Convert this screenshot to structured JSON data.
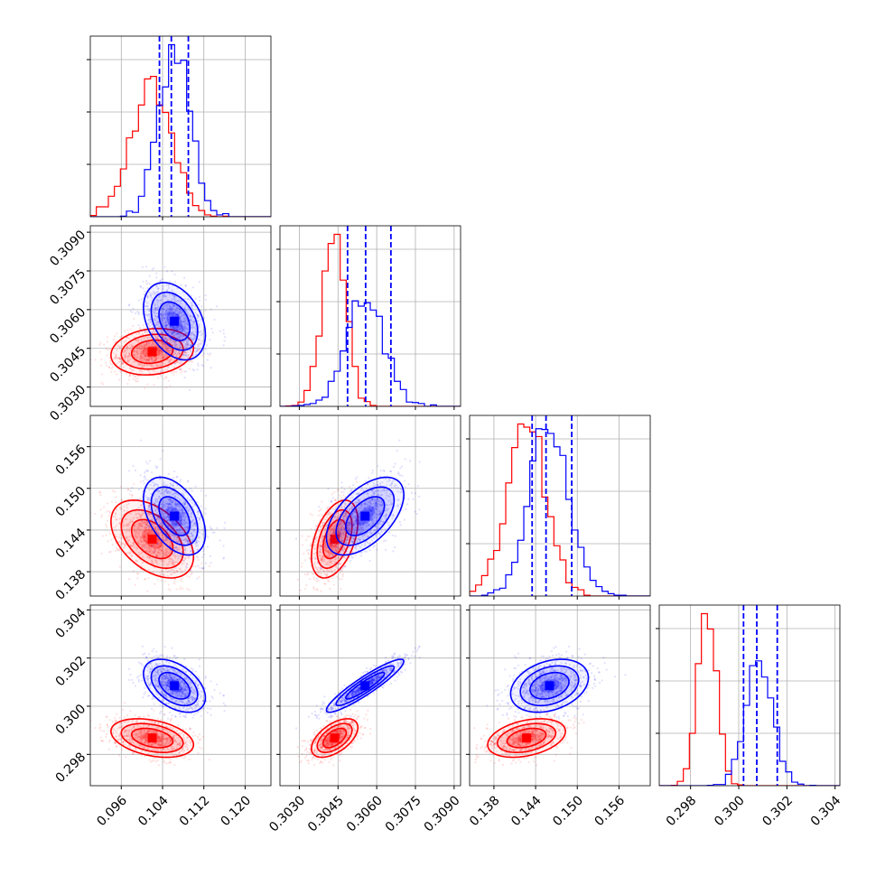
{
  "chart_data": {
    "type": "corner",
    "grid": true,
    "quantile_lines": "dashed",
    "colors": {
      "a": "#ff0000",
      "b": "#0000ff",
      "grid": "#b0b0b0"
    },
    "params": [
      {
        "range": [
          0.09,
          0.125
        ],
        "ticks": [
          "0.096",
          "0.104",
          "0.112",
          "0.120"
        ],
        "tick_values": [
          0.096,
          0.104,
          0.112,
          0.12
        ]
      },
      {
        "range": [
          0.30225,
          0.30925
        ],
        "ticks": [
          "0.3030",
          "0.3045",
          "0.3060",
          "0.3075",
          "0.3090"
        ],
        "tick_values": [
          0.303,
          0.3045,
          0.306,
          0.3075,
          0.309
        ]
      },
      {
        "range": [
          0.1345,
          0.1605
        ],
        "ticks": [
          "0.138",
          "0.144",
          "0.150",
          "0.156"
        ],
        "tick_values": [
          0.138,
          0.144,
          0.15,
          0.156
        ]
      },
      {
        "range": [
          0.2967,
          0.3042
        ],
        "ticks": [
          "0.298",
          "0.300",
          "0.302",
          "0.304"
        ],
        "tick_values": [
          0.298,
          0.3,
          0.302,
          0.304
        ]
      }
    ],
    "series": [
      {
        "id": "a",
        "color": "#ff0000",
        "mean": [
          0.102,
          0.30437,
          0.1427,
          0.29868
        ],
        "sigma": [
          0.004,
          0.00045,
          0.0028,
          0.0004
        ],
        "corr": [
          [
            1,
            0.15,
            -0.45,
            -0.35
          ],
          [
            0.15,
            1,
            0.45,
            0.55
          ],
          [
            -0.45,
            0.45,
            1,
            0.35
          ],
          [
            -0.35,
            0.55,
            0.35,
            1
          ]
        ],
        "quantiles": [
          [],
          [],
          [],
          []
        ]
      },
      {
        "id": "b",
        "color": "#0000ff",
        "mean": [
          0.1063,
          0.30555,
          0.146,
          0.30085
        ],
        "sigma": [
          0.003,
          0.00075,
          0.0028,
          0.00055
        ],
        "corr": [
          [
            1,
            -0.35,
            -0.45,
            -0.45
          ],
          [
            -0.35,
            1,
            0.55,
            0.92
          ],
          [
            -0.45,
            0.55,
            1,
            0.3
          ],
          [
            -0.45,
            0.92,
            0.3,
            1
          ]
        ],
        "quantiles": [
          [
            0.1034,
            0.1057,
            0.109
          ],
          [
            0.30487,
            0.30557,
            0.30655
          ],
          [
            0.1435,
            0.1455,
            0.1492
          ],
          [
            0.3002,
            0.30075,
            0.3016
          ]
        ]
      }
    ]
  }
}
